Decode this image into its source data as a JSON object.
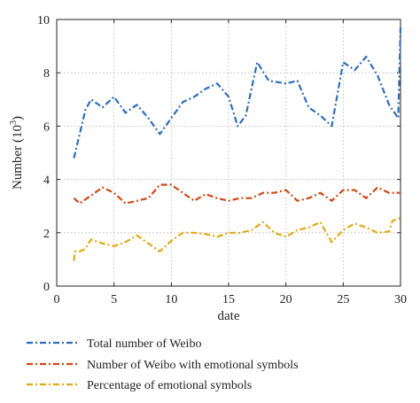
{
  "chart_data": {
    "type": "line",
    "xlabel": "date",
    "ylabel": "Number (10",
    "ylabel_sup": "3",
    "ylabel_end": ")",
    "xlim": [
      0,
      30
    ],
    "ylim": [
      0,
      10
    ],
    "xticks": [
      0,
      5,
      10,
      15,
      20,
      25,
      30
    ],
    "yticks": [
      0,
      2,
      4,
      6,
      8,
      10
    ],
    "grid": true,
    "legend_position": "bottom",
    "series": [
      {
        "name": "Total number of Weibo",
        "color": "#2e6fba",
        "x": [
          1.5,
          2,
          2.5,
          3,
          4,
          5,
          6,
          7,
          8,
          9,
          10,
          11,
          12,
          13,
          14,
          15,
          15.8,
          16.5,
          17.5,
          18.5,
          20,
          21,
          22,
          23,
          24,
          25,
          26,
          27,
          28,
          29,
          29.8,
          30
        ],
        "y": [
          4.8,
          5.7,
          6.6,
          7.0,
          6.7,
          7.1,
          6.5,
          6.8,
          6.3,
          5.7,
          6.3,
          6.9,
          7.1,
          7.4,
          7.6,
          7.1,
          6.0,
          6.4,
          8.4,
          7.7,
          7.6,
          7.7,
          6.7,
          6.4,
          6.0,
          8.4,
          8.1,
          8.6,
          7.9,
          6.8,
          6.3,
          9.7
        ]
      },
      {
        "name": "Number of Weibo with emotional symbols",
        "color": "#cc4a16",
        "x": [
          1.5,
          2,
          3,
          4,
          5,
          6,
          7,
          8,
          9,
          10,
          11,
          12,
          13,
          14,
          15,
          16,
          17,
          18,
          19,
          20,
          21,
          22,
          23,
          24,
          25,
          26,
          27,
          28,
          29,
          30
        ],
        "y": [
          3.3,
          3.1,
          3.4,
          3.7,
          3.5,
          3.1,
          3.2,
          3.3,
          3.8,
          3.8,
          3.5,
          3.2,
          3.45,
          3.3,
          3.2,
          3.3,
          3.3,
          3.5,
          3.5,
          3.6,
          3.2,
          3.3,
          3.5,
          3.2,
          3.6,
          3.6,
          3.3,
          3.7,
          3.5,
          3.5
        ]
      },
      {
        "name": "Percentage of emotional symbols",
        "color": "#e2a917",
        "x": [
          1.5,
          1.6,
          2,
          2.5,
          3,
          4,
          5,
          6,
          7,
          8,
          9,
          10,
          11,
          12,
          13,
          14,
          15,
          16,
          17,
          18,
          19,
          20,
          21,
          22,
          23,
          24,
          25,
          26,
          27,
          28,
          29,
          29.3,
          30
        ],
        "y": [
          0.95,
          1.3,
          1.3,
          1.4,
          1.75,
          1.6,
          1.5,
          1.65,
          1.9,
          1.6,
          1.3,
          1.7,
          2.0,
          2.0,
          1.95,
          1.85,
          2.0,
          2.0,
          2.1,
          2.4,
          2.0,
          1.85,
          2.1,
          2.2,
          2.4,
          1.65,
          2.1,
          2.35,
          2.2,
          2.0,
          2.05,
          2.45,
          2.55
        ]
      }
    ]
  }
}
